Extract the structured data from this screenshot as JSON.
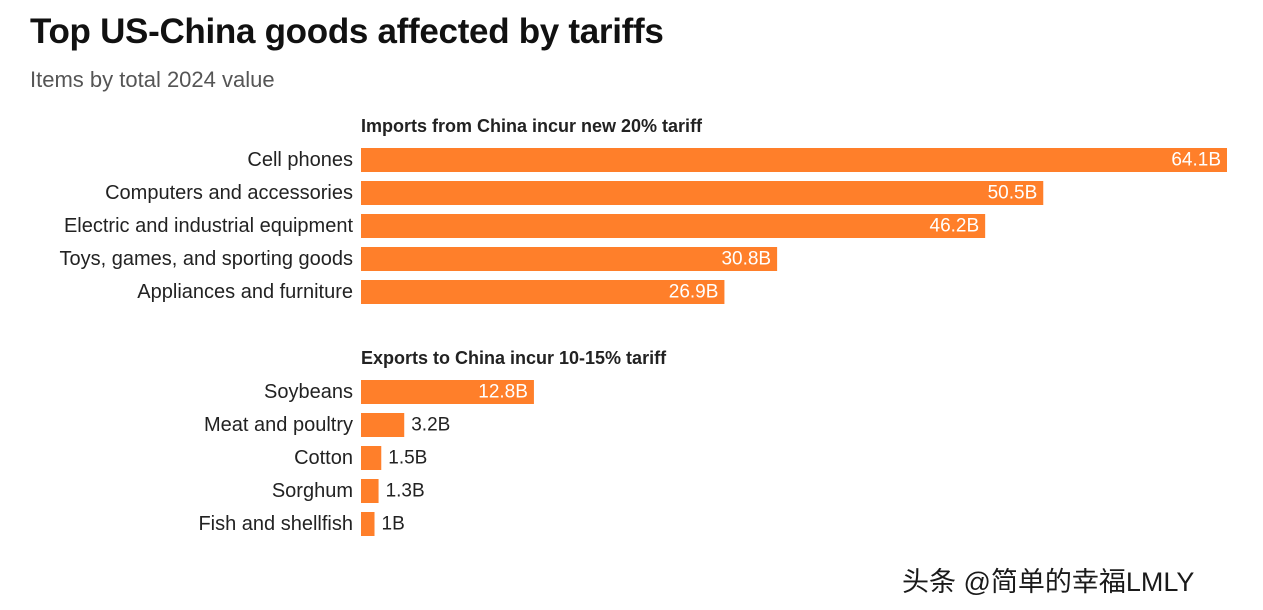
{
  "title": "Top US-China goods affected by tariffs",
  "subtitle": "Items by total 2024 value",
  "watermark": "头条 @简单的幸福LMLY",
  "colors": {
    "bar": "#FF7F2A",
    "label_inside": "#ffffff",
    "label_outside": "#222222",
    "category_text": "#222222",
    "group_title": "#222222"
  },
  "chart_data": {
    "type": "bar",
    "orientation": "horizontal",
    "unit": "B",
    "title": "Top US-China goods affected by tariffs",
    "subtitle": "Items by total 2024 value",
    "xlim": [
      0,
      64.1
    ],
    "groups": [
      {
        "name": "Imports from China incur new 20% tariff",
        "categories": [
          "Cell phones",
          "Computers and accessories",
          "Electric and industrial equipment",
          "Toys, games, and sporting goods",
          "Appliances and furniture"
        ],
        "values": [
          64.1,
          50.5,
          46.2,
          30.8,
          26.9
        ],
        "labels": [
          "64.1B",
          "50.5B",
          "46.2B",
          "30.8B",
          "26.9B"
        ]
      },
      {
        "name": "Exports to China incur 10-15% tariff",
        "categories": [
          "Soybeans",
          "Meat and poultry",
          "Cotton",
          "Sorghum",
          "Fish and shellfish"
        ],
        "values": [
          12.8,
          3.2,
          1.5,
          1.3,
          1.0
        ],
        "labels": [
          "12.8B",
          "3.2B",
          "1.5B",
          "1.3B",
          "1B"
        ]
      }
    ]
  }
}
